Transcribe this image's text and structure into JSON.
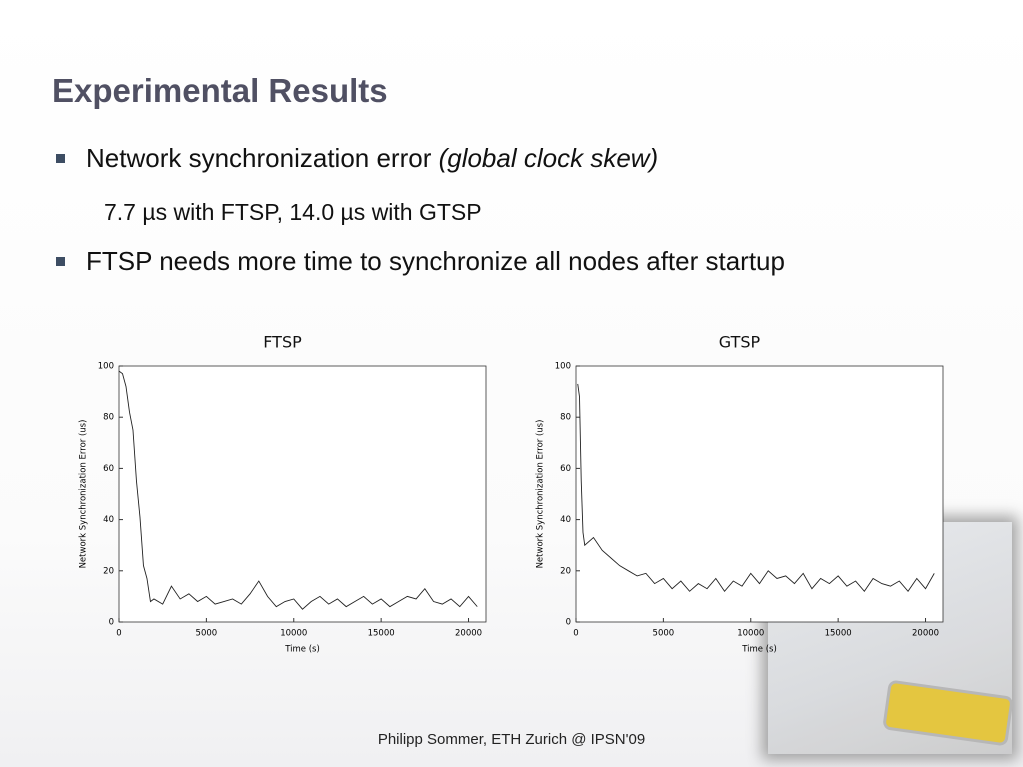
{
  "title": "Experimental Results",
  "bullets": [
    {
      "text": "Network synchronization error ",
      "emphasis": "(global clock skew)",
      "sub": "7.7 µs with FTSP, 14.0 µs with GTSP"
    },
    {
      "text": "FTSP needs more time to synchronize all nodes after startup"
    }
  ],
  "footer": "Philipp Sommer, ETH Zurich @ IPSN'09",
  "chart_data": [
    {
      "type": "line",
      "title": "FTSP",
      "xlabel": "Time (s)",
      "ylabel": "Network Synchronization Error (us)",
      "xlim": [
        0,
        21000
      ],
      "ylim": [
        0,
        100
      ],
      "xticks": [
        0,
        5000,
        10000,
        15000,
        20000
      ],
      "yticks": [
        0,
        20,
        40,
        60,
        80,
        100
      ],
      "x": [
        0,
        200,
        400,
        600,
        800,
        1000,
        1200,
        1400,
        1600,
        1800,
        2000,
        2500,
        3000,
        3500,
        4000,
        4500,
        5000,
        5500,
        6000,
        6500,
        7000,
        7500,
        8000,
        8500,
        9000,
        9500,
        10000,
        10500,
        11000,
        11500,
        12000,
        12500,
        13000,
        13500,
        14000,
        14500,
        15000,
        15500,
        16000,
        16500,
        17000,
        17500,
        18000,
        18500,
        19000,
        19500,
        20000,
        20500
      ],
      "series": [
        {
          "color": "#222222",
          "values": [
            98,
            97,
            92,
            82,
            75,
            55,
            41,
            22,
            17,
            8,
            9,
            7,
            14,
            9,
            11,
            8,
            10,
            7,
            8,
            9,
            7,
            11,
            16,
            10,
            6,
            8,
            9,
            5,
            8,
            10,
            7,
            9,
            6,
            8,
            10,
            7,
            9,
            6,
            8,
            10,
            9,
            13,
            8,
            7,
            9,
            6,
            10,
            6
          ]
        }
      ]
    },
    {
      "type": "line",
      "title": "GTSP",
      "xlabel": "Time (s)",
      "ylabel": "Network Synchronization Error (us)",
      "xlim": [
        0,
        21000
      ],
      "ylim": [
        0,
        100
      ],
      "xticks": [
        0,
        5000,
        10000,
        15000,
        20000
      ],
      "yticks": [
        0,
        20,
        40,
        60,
        80,
        100
      ],
      "x": [
        100,
        200,
        300,
        400,
        500,
        1000,
        1500,
        2000,
        2500,
        3000,
        3500,
        4000,
        4500,
        5000,
        5500,
        6000,
        6500,
        7000,
        7500,
        8000,
        8500,
        9000,
        9500,
        10000,
        10500,
        11000,
        11500,
        12000,
        12500,
        13000,
        13500,
        14000,
        14500,
        15000,
        15500,
        16000,
        16500,
        17000,
        17500,
        18000,
        18500,
        19000,
        19500,
        20000,
        20500
      ],
      "series": [
        {
          "color": "#222222",
          "values": [
            93,
            88,
            55,
            35,
            30,
            33,
            28,
            25,
            22,
            20,
            18,
            19,
            15,
            17,
            13,
            16,
            12,
            15,
            13,
            17,
            12,
            16,
            14,
            19,
            15,
            20,
            17,
            18,
            15,
            19,
            13,
            17,
            15,
            18,
            14,
            16,
            12,
            17,
            15,
            14,
            16,
            12,
            17,
            13,
            19
          ]
        }
      ]
    }
  ]
}
